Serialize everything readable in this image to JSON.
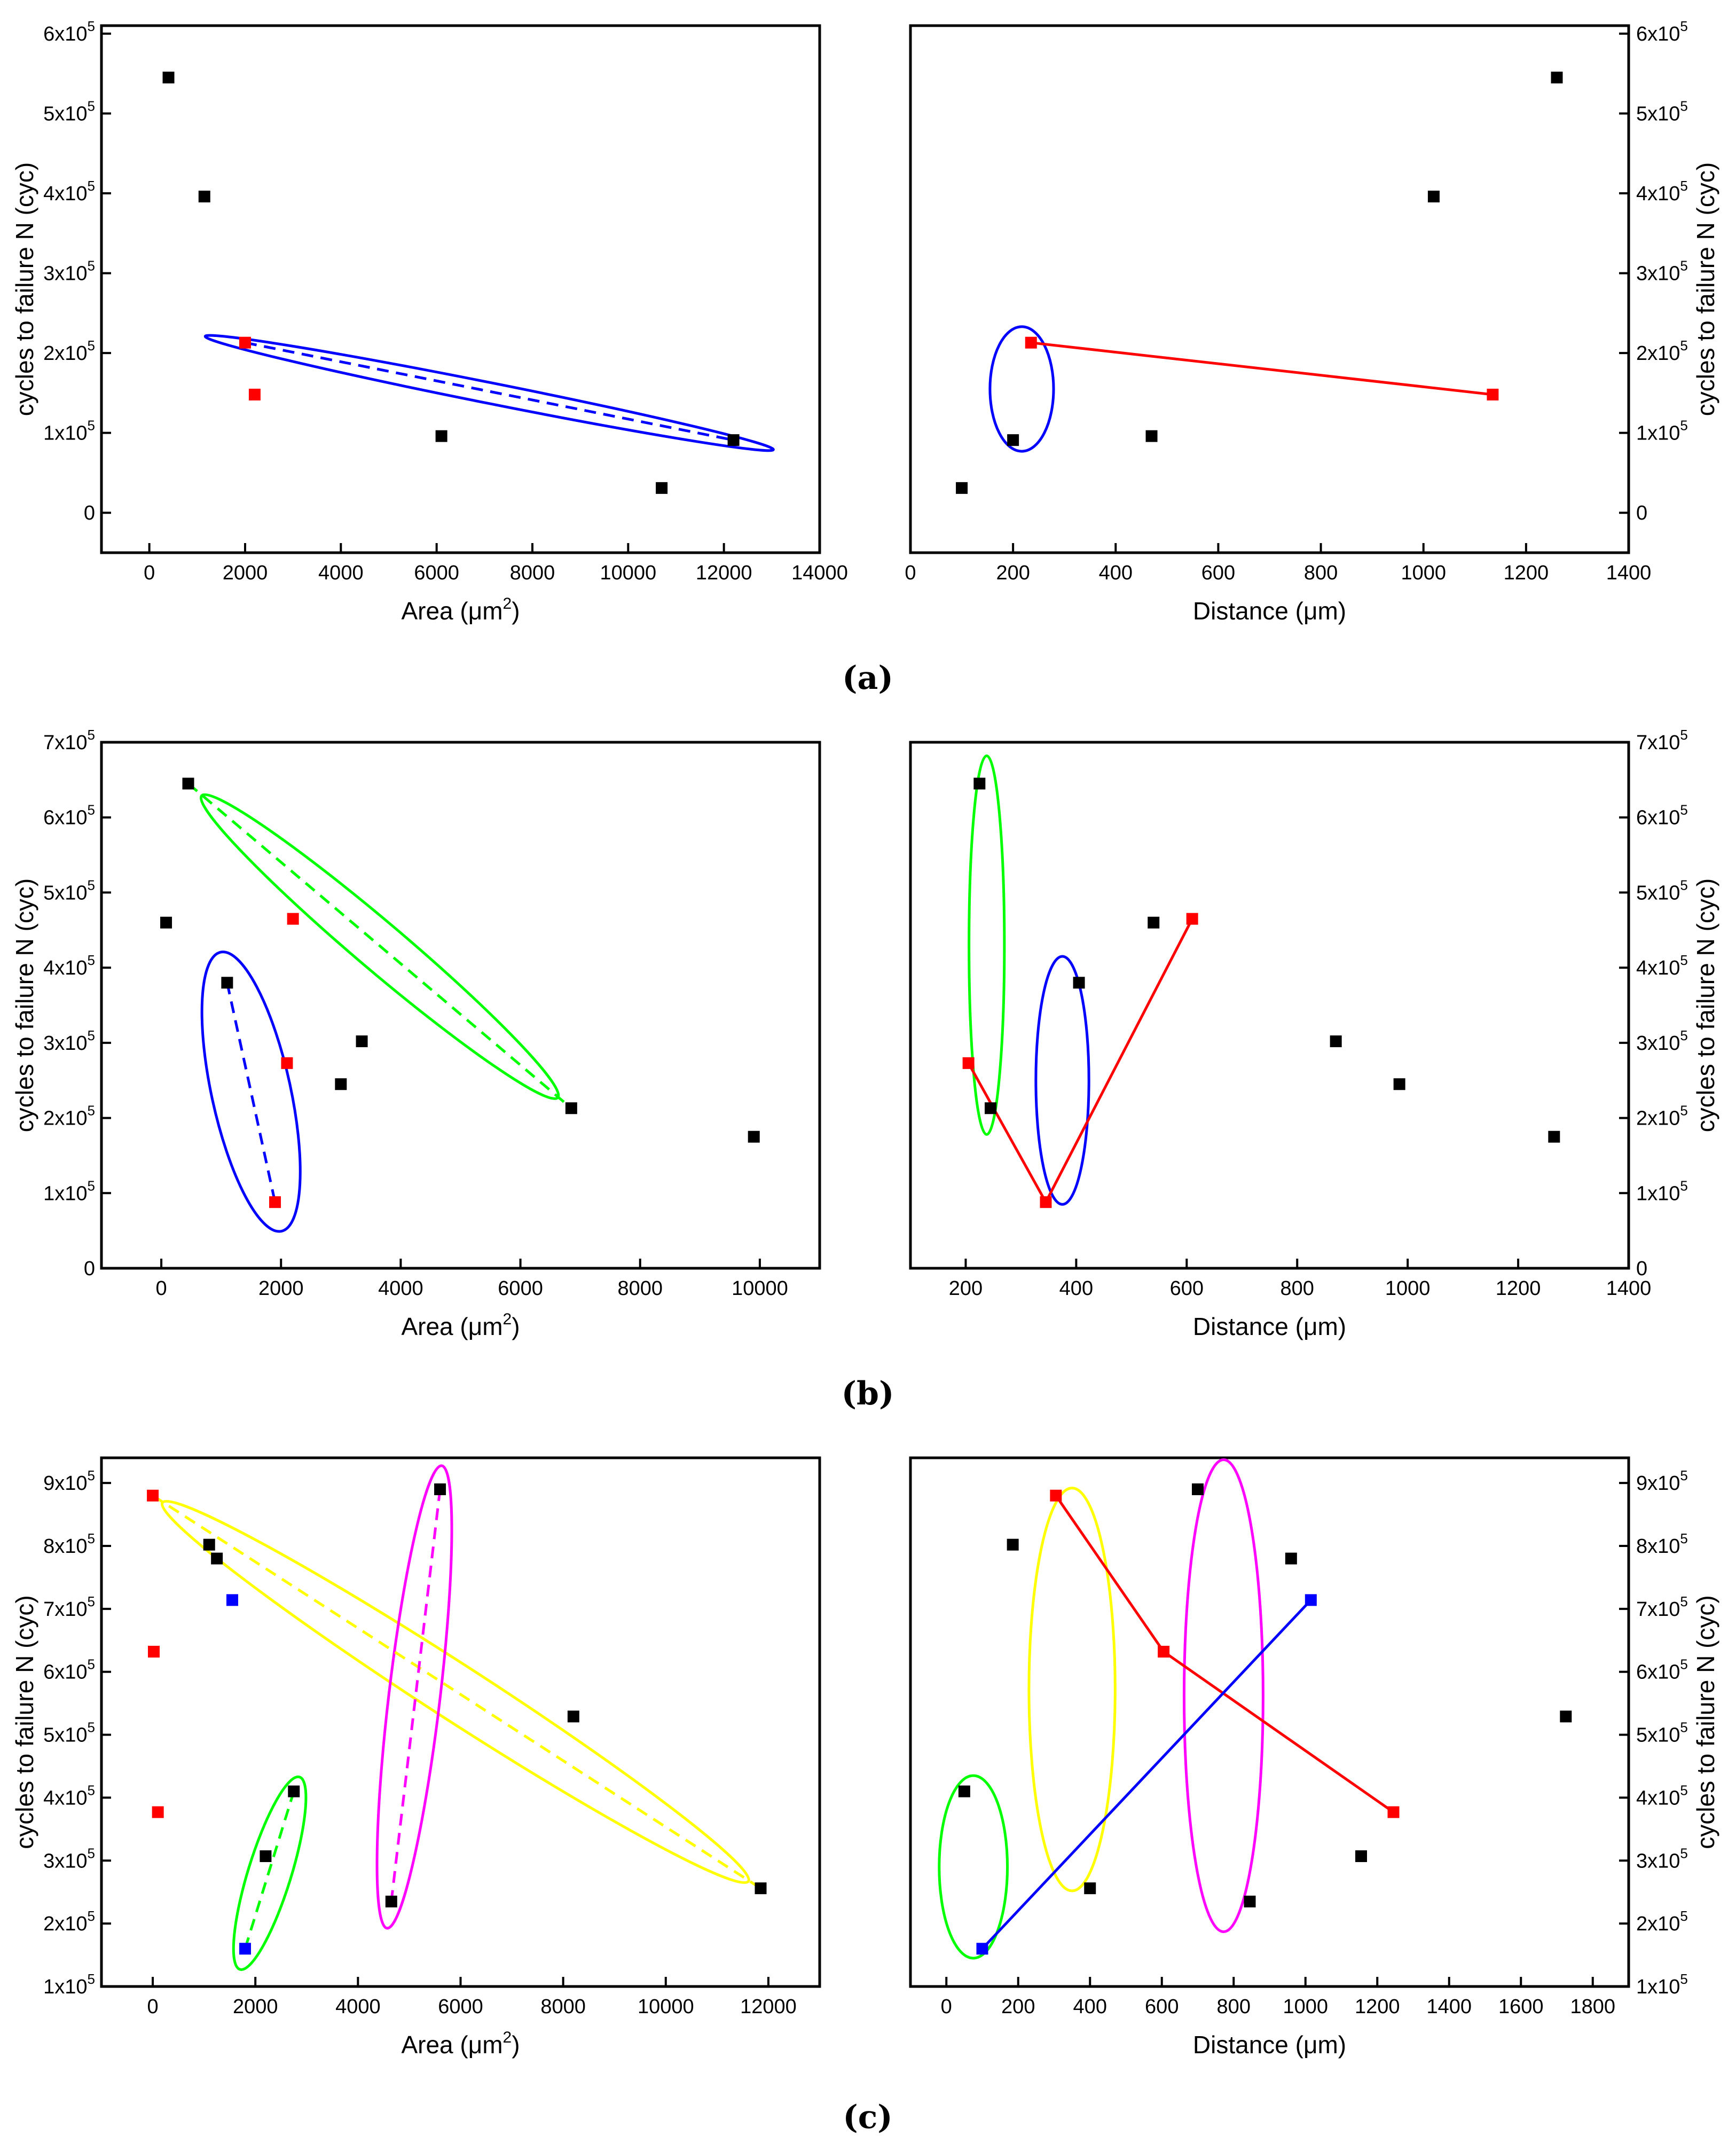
{
  "figure": {
    "panels": [
      {
        "label": "(a)",
        "ylabel": "cycles to failure N (cyc)",
        "yticks": [
          {
            "value": 600000,
            "base": "6x10",
            "exp": "5"
          },
          {
            "value": 500000,
            "base": "5x10",
            "exp": "5"
          },
          {
            "value": 400000,
            "base": "4x10",
            "exp": "5"
          },
          {
            "value": 300000,
            "base": "3x10",
            "exp": "5"
          },
          {
            "value": 200000,
            "base": "2x10",
            "exp": "5"
          },
          {
            "value": 100000,
            "base": "1x10",
            "exp": "5"
          },
          {
            "value": 0,
            "base": "0",
            "exp": ""
          }
        ]
      },
      {
        "label": "(b)",
        "ylabel": "cycles to failure N (cyc)",
        "yticks": [
          {
            "value": 700000,
            "base": "7x10",
            "exp": "5"
          },
          {
            "value": 600000,
            "base": "6x10",
            "exp": "5"
          },
          {
            "value": 500000,
            "base": "5x10",
            "exp": "5"
          },
          {
            "value": 400000,
            "base": "4x10",
            "exp": "5"
          },
          {
            "value": 300000,
            "base": "3x10",
            "exp": "5"
          },
          {
            "value": 200000,
            "base": "2x10",
            "exp": "5"
          },
          {
            "value": 100000,
            "base": "1x10",
            "exp": "5"
          },
          {
            "value": 0,
            "base": "0",
            "exp": ""
          }
        ]
      },
      {
        "label": "(c)",
        "ylabel": "cycles to failure N (cyc)",
        "yticks": [
          {
            "value": 900000,
            "base": "9x10",
            "exp": "5"
          },
          {
            "value": 800000,
            "base": "8x10",
            "exp": "5"
          },
          {
            "value": 700000,
            "base": "7x10",
            "exp": "5"
          },
          {
            "value": 600000,
            "base": "6x10",
            "exp": "5"
          },
          {
            "value": 500000,
            "base": "5x10",
            "exp": "5"
          },
          {
            "value": 400000,
            "base": "4x10",
            "exp": "5"
          },
          {
            "value": 300000,
            "base": "3x10",
            "exp": "5"
          },
          {
            "value": 200000,
            "base": "2x10",
            "exp": "5"
          },
          {
            "value": 100000,
            "base": "1x10",
            "exp": "5"
          }
        ]
      }
    ]
  },
  "colors": {
    "black": "#000000",
    "red": "#ff0000",
    "blue": "#0000ff",
    "green": "#00ff00",
    "yellow": "#ffff00",
    "magenta": "#ff00ff"
  },
  "chart_data": [
    {
      "id": "a-area",
      "type": "scatter",
      "xlabel": "Area (μm²)",
      "xlabel_base": "Area (μm",
      "xlabel_sup": "2",
      "xlabel_tail": ")",
      "ylabel": "cycles to failure N (cyc)",
      "xlim": [
        -1000,
        14000
      ],
      "ylim": [
        -50000,
        610000
      ],
      "xticks": [
        0,
        2000,
        4000,
        6000,
        8000,
        10000,
        12000,
        14000
      ],
      "points": [
        {
          "x": 400,
          "y": 545000,
          "color": "black"
        },
        {
          "x": 1150,
          "y": 396000,
          "color": "black"
        },
        {
          "x": 2000,
          "y": 213000,
          "color": "red"
        },
        {
          "x": 2200,
          "y": 148000,
          "color": "red"
        },
        {
          "x": 6100,
          "y": 96000,
          "color": "black"
        },
        {
          "x": 10700,
          "y": 31000,
          "color": "black"
        },
        {
          "x": 12200,
          "y": 91000,
          "color": "black"
        }
      ],
      "lines": [
        {
          "from": [
            2000,
            213000
          ],
          "to": [
            12200,
            91000
          ],
          "color": "blue",
          "dashed": true
        }
      ],
      "ellipses": [
        {
          "cx": 7100,
          "cy": 150000,
          "rx": 6050,
          "ry": 13000,
          "color": "blue"
        }
      ]
    },
    {
      "id": "a-distance",
      "type": "scatter",
      "xlabel": "Distance (μm)",
      "xlabel_base": "Distance (μm)",
      "xlabel_sup": "",
      "xlabel_tail": "",
      "ylabel": "cycles to failure N (cyc)",
      "xlim": [
        0,
        1400
      ],
      "ylim": [
        -50000,
        610000
      ],
      "xticks": [
        0,
        200,
        400,
        600,
        800,
        1000,
        1200,
        1400
      ],
      "points": [
        {
          "x": 100,
          "y": 31000,
          "color": "black"
        },
        {
          "x": 200,
          "y": 91000,
          "color": "black"
        },
        {
          "x": 235,
          "y": 213000,
          "color": "red"
        },
        {
          "x": 470,
          "y": 96000,
          "color": "black"
        },
        {
          "x": 1020,
          "y": 396000,
          "color": "black"
        },
        {
          "x": 1135,
          "y": 148000,
          "color": "red"
        },
        {
          "x": 1260,
          "y": 545000,
          "color": "black"
        }
      ],
      "lines": [
        {
          "from": [
            235,
            213000
          ],
          "to": [
            1135,
            148000
          ],
          "color": "red",
          "dashed": false
        }
      ],
      "ellipses": [
        {
          "cx": 217,
          "cy": 155000,
          "rx": 62,
          "ry": 78000,
          "color": "blue"
        }
      ]
    },
    {
      "id": "b-area",
      "type": "scatter",
      "xlabel": "Area (μm²)",
      "xlabel_base": "Area (μm",
      "xlabel_sup": "2",
      "xlabel_tail": ")",
      "ylabel": "cycles to failure N (cyc)",
      "xlim": [
        -1000,
        11000
      ],
      "ylim": [
        0,
        700000
      ],
      "xticks": [
        0,
        2000,
        4000,
        6000,
        8000,
        10000
      ],
      "points": [
        {
          "x": 80,
          "y": 460000,
          "color": "black"
        },
        {
          "x": 450,
          "y": 645000,
          "color": "black"
        },
        {
          "x": 1100,
          "y": 380000,
          "color": "black"
        },
        {
          "x": 1900,
          "y": 88000,
          "color": "red"
        },
        {
          "x": 2100,
          "y": 273000,
          "color": "red"
        },
        {
          "x": 2200,
          "y": 465000,
          "color": "red"
        },
        {
          "x": 3000,
          "y": 245000,
          "color": "black"
        },
        {
          "x": 3350,
          "y": 302000,
          "color": "black"
        },
        {
          "x": 6850,
          "y": 213000,
          "color": "black"
        },
        {
          "x": 9900,
          "y": 175000,
          "color": "black"
        }
      ],
      "lines": [
        {
          "from": [
            450,
            645000
          ],
          "to": [
            6850,
            213000
          ],
          "color": "green",
          "dashed": true
        },
        {
          "from": [
            1100,
            380000
          ],
          "to": [
            1900,
            88000
          ],
          "color": "blue",
          "dashed": true
        }
      ],
      "ellipses": [
        {
          "cx": 3650,
          "cy": 428000,
          "rx": 3900,
          "ry": 32000,
          "color": "green"
        },
        {
          "cx": 1500,
          "cy": 235000,
          "rx": 660,
          "ry": 190000,
          "color": "blue"
        }
      ]
    },
    {
      "id": "b-distance",
      "type": "scatter",
      "xlabel": "Distance (μm)",
      "xlabel_base": "Distance (μm)",
      "xlabel_sup": "",
      "xlabel_tail": "",
      "ylabel": "cycles to failure N (cyc)",
      "xlim": [
        100,
        1400
      ],
      "ylim": [
        0,
        700000
      ],
      "xticks": [
        200,
        400,
        600,
        800,
        1000,
        1200,
        1400
      ],
      "points": [
        {
          "x": 205,
          "y": 273000,
          "color": "red"
        },
        {
          "x": 225,
          "y": 645000,
          "color": "black"
        },
        {
          "x": 245,
          "y": 213000,
          "color": "black"
        },
        {
          "x": 345,
          "y": 88000,
          "color": "red"
        },
        {
          "x": 405,
          "y": 380000,
          "color": "black"
        },
        {
          "x": 540,
          "y": 460000,
          "color": "black"
        },
        {
          "x": 610,
          "y": 465000,
          "color": "red"
        },
        {
          "x": 870,
          "y": 302000,
          "color": "black"
        },
        {
          "x": 985,
          "y": 245000,
          "color": "black"
        },
        {
          "x": 1265,
          "y": 175000,
          "color": "black"
        }
      ],
      "lines": [
        {
          "from": [
            205,
            273000
          ],
          "to": [
            345,
            88000
          ],
          "color": "red",
          "dashed": false
        },
        {
          "from": [
            345,
            88000
          ],
          "to": [
            610,
            465000
          ],
          "color": "red",
          "dashed": false
        }
      ],
      "ellipses": [
        {
          "cx": 238,
          "cy": 430000,
          "rx": 32,
          "ry": 252000,
          "color": "green"
        },
        {
          "cx": 375,
          "cy": 250000,
          "rx": 48,
          "ry": 165000,
          "color": "blue"
        }
      ]
    },
    {
      "id": "c-area",
      "type": "scatter",
      "xlabel": "Area (μm²)",
      "xlabel_base": "Area (μm",
      "xlabel_sup": "2",
      "xlabel_tail": ")",
      "ylabel": "cycles to failure N (cyc)",
      "xlim": [
        -1000,
        13000
      ],
      "ylim": [
        100000,
        940000
      ],
      "xticks": [
        0,
        2000,
        4000,
        6000,
        8000,
        10000,
        12000
      ],
      "points": [
        {
          "x": 0,
          "y": 880000,
          "color": "red"
        },
        {
          "x": 20,
          "y": 632000,
          "color": "red"
        },
        {
          "x": 100,
          "y": 377000,
          "color": "red"
        },
        {
          "x": 1100,
          "y": 802000,
          "color": "black"
        },
        {
          "x": 1250,
          "y": 780000,
          "color": "black"
        },
        {
          "x": 1550,
          "y": 714000,
          "color": "blue"
        },
        {
          "x": 1800,
          "y": 160000,
          "color": "blue"
        },
        {
          "x": 2200,
          "y": 307000,
          "color": "black"
        },
        {
          "x": 2750,
          "y": 410000,
          "color": "black"
        },
        {
          "x": 4650,
          "y": 235000,
          "color": "black"
        },
        {
          "x": 5600,
          "y": 890000,
          "color": "black"
        },
        {
          "x": 8200,
          "y": 529000,
          "color": "black"
        },
        {
          "x": 11850,
          "y": 256000,
          "color": "black"
        }
      ],
      "lines": [
        {
          "from": [
            0,
            880000
          ],
          "to": [
            11850,
            256000
          ],
          "color": "yellow",
          "dashed": true
        },
        {
          "from": [
            5600,
            890000
          ],
          "to": [
            4650,
            235000
          ],
          "color": "magenta",
          "dashed": true
        },
        {
          "from": [
            1800,
            160000
          ],
          "to": [
            2750,
            410000
          ],
          "color": "green",
          "dashed": true
        }
      ],
      "ellipses": [
        {
          "cx": 5900,
          "cy": 568000,
          "rx": 6800,
          "ry": 44000,
          "color": "yellow"
        },
        {
          "cx": 5100,
          "cy": 560000,
          "rx": 500,
          "ry": 370000,
          "color": "magenta"
        },
        {
          "cx": 2280,
          "cy": 280000,
          "rx": 420,
          "ry": 160000,
          "color": "green"
        }
      ]
    },
    {
      "id": "c-distance",
      "type": "scatter",
      "xlabel": "Distance (μm)",
      "xlabel_base": "Distance (μm)",
      "xlabel_sup": "",
      "xlabel_tail": "",
      "ylabel": "cycles to failure N (cyc)",
      "xlim": [
        -100,
        1900
      ],
      "ylim": [
        100000,
        940000
      ],
      "xticks": [
        0,
        200,
        400,
        600,
        800,
        1000,
        1200,
        1400,
        1600,
        1800
      ],
      "points": [
        {
          "x": 50,
          "y": 410000,
          "color": "black"
        },
        {
          "x": 100,
          "y": 160000,
          "color": "blue"
        },
        {
          "x": 185,
          "y": 802000,
          "color": "black"
        },
        {
          "x": 305,
          "y": 880000,
          "color": "red"
        },
        {
          "x": 400,
          "y": 256000,
          "color": "black"
        },
        {
          "x": 605,
          "y": 632000,
          "color": "red"
        },
        {
          "x": 700,
          "y": 890000,
          "color": "black"
        },
        {
          "x": 845,
          "y": 235000,
          "color": "black"
        },
        {
          "x": 960,
          "y": 780000,
          "color": "black"
        },
        {
          "x": 1015,
          "y": 714000,
          "color": "blue"
        },
        {
          "x": 1155,
          "y": 307000,
          "color": "black"
        },
        {
          "x": 1245,
          "y": 377000,
          "color": "red"
        },
        {
          "x": 1725,
          "y": 529000,
          "color": "black"
        }
      ],
      "lines": [
        {
          "from": [
            305,
            880000
          ],
          "to": [
            605,
            632000
          ],
          "color": "red",
          "dashed": false
        },
        {
          "from": [
            605,
            632000
          ],
          "to": [
            1245,
            377000
          ],
          "color": "red",
          "dashed": false
        },
        {
          "from": [
            100,
            160000
          ],
          "to": [
            1015,
            714000
          ],
          "color": "blue",
          "dashed": false
        }
      ],
      "ellipses": [
        {
          "cx": 75,
          "cy": 290000,
          "rx": 95,
          "ry": 145000,
          "color": "green"
        },
        {
          "cx": 350,
          "cy": 572000,
          "rx": 120,
          "ry": 320000,
          "color": "yellow"
        },
        {
          "cx": 772,
          "cy": 562000,
          "rx": 110,
          "ry": 375000,
          "color": "magenta"
        }
      ]
    }
  ]
}
